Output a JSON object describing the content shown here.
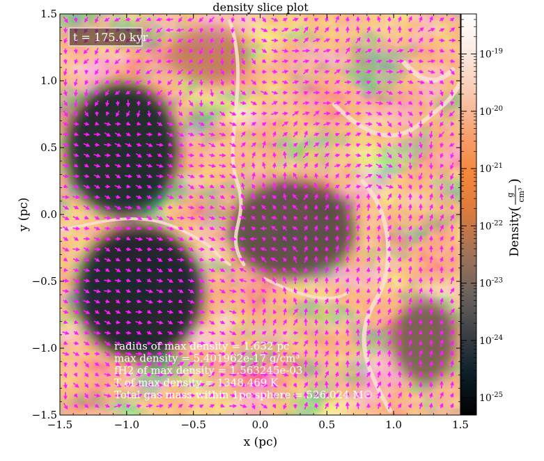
{
  "chart_data": {
    "type": "heatmap",
    "title": "density slice plot",
    "xlabel": "x  (pc)",
    "ylabel": "y  (pc)",
    "xlim": [
      -1.5,
      1.5
    ],
    "ylim": [
      -1.5,
      1.5
    ],
    "x_ticks": [
      -1.5,
      -1.0,
      -0.5,
      0.0,
      0.5,
      1.0,
      1.5
    ],
    "y_ticks": [
      -1.5,
      -1.0,
      -0.5,
      0.0,
      0.5,
      1.0,
      1.5
    ],
    "x_tick_labels": [
      "−1.5",
      "−1.0",
      "−0.5",
      "0.0",
      "0.5",
      "1.0",
      "1.5"
    ],
    "y_tick_labels": [
      "−1.5",
      "−1.0",
      "−0.5",
      "0.0",
      "0.5",
      "1.0",
      "1.5"
    ],
    "colorbar": {
      "label": "Density",
      "unit_numerator": "g",
      "unit_denominator": "cm³",
      "scale": "log",
      "range": [
        5e-26,
        5e-19
      ],
      "ticks": [
        1e-25,
        1e-24,
        1e-23,
        1e-22,
        1e-21,
        1e-20,
        1e-19
      ],
      "tick_mantissa": "10",
      "tick_exponents": [
        "-25",
        "-24",
        "-23",
        "-22",
        "-21",
        "-20",
        "-19"
      ],
      "colors": [
        "#000000",
        "#0c1e28",
        "#3a3f45",
        "#6b625d",
        "#a0735a",
        "#d87a3e",
        "#f5863a",
        "#f7a070",
        "#f9c9ae",
        "#fbe9e0",
        "#ffffff"
      ]
    },
    "time_label": "t = 175.0 kyr",
    "annotations": [
      "radius of max density = 1.632 pc",
      "max density = 5.401962e-17 g/cm³",
      "fH2 of max density = 1.563245e-03",
      "T of max density = 1348.469 K",
      "Total gas mass within 1pc sphere = 526.024 M☉"
    ],
    "grid": false,
    "legend": "none",
    "overlay": "velocity quiver arrows",
    "arrow_color": "#ff1aff"
  }
}
